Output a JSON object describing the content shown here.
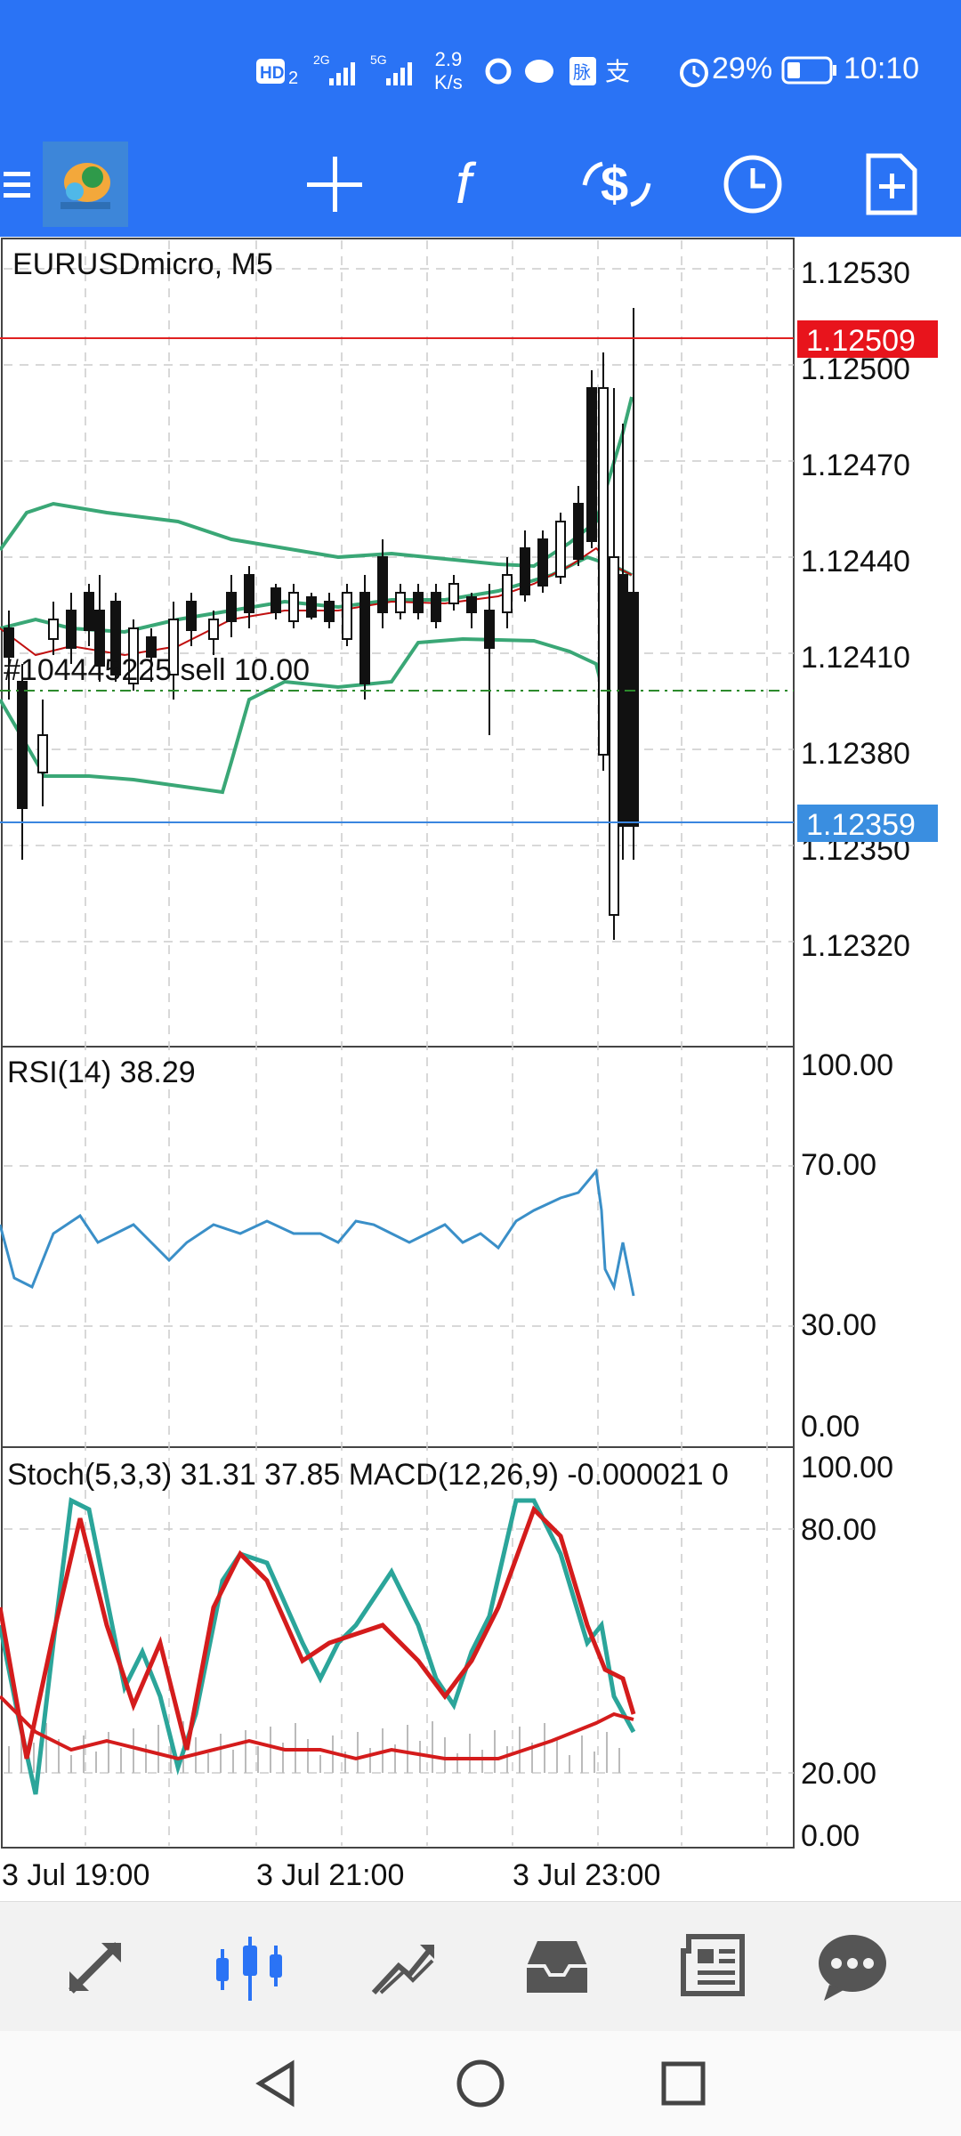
{
  "status_bar": {
    "net_speed_value": "2.9",
    "net_speed_unit": "K/s",
    "battery": "29%",
    "time": "10:10"
  },
  "toolbar": {
    "icons": [
      "menu-icon",
      "app-logo-icon",
      "crosshair-icon",
      "function-icon",
      "trade-icon",
      "clock-icon",
      "add-document-icon"
    ]
  },
  "chart": {
    "symbol_label": "EURUSDmicro, M5",
    "price_ticks": [
      "1.12530",
      "1.12500",
      "1.12470",
      "1.12440",
      "1.12410",
      "1.12380",
      "1.12350",
      "1.12320"
    ],
    "bid_price": "1.12509",
    "ask_price": "1.12359",
    "order_line_label": "#104445225 sell 10.00",
    "rsi_label": "RSI(14) 38.29",
    "rsi_ticks": [
      "100.00",
      "70.00",
      "30.00",
      "0.00"
    ],
    "stoch_label": "Stoch(5,3,3) 31.31 37.85 MACD(12,26,9) -0.000021 0",
    "stoch_ticks": [
      "100.00",
      "80.00",
      "20.00",
      "0.00"
    ],
    "time_ticks": [
      "3 Jul 19:00",
      "3 Jul 21:00",
      "3 Jul 23:00"
    ],
    "colors": {
      "bid_line": "#e02020",
      "ask_line": "#3a86e0",
      "bollinger": "#3aa776",
      "ma": "#c01010",
      "rsi": "#3a8fc8",
      "stoch_main": "#2ba59a",
      "stoch_signal": "#d41c1c"
    }
  },
  "bottom_nav": {
    "items": [
      "quotes-icon",
      "charts-icon",
      "trade-icon",
      "history-icon",
      "news-icon",
      "messages-icon"
    ],
    "active": "charts-icon"
  },
  "system_nav": {
    "items": [
      "back-icon",
      "home-icon",
      "recents-icon"
    ]
  }
}
